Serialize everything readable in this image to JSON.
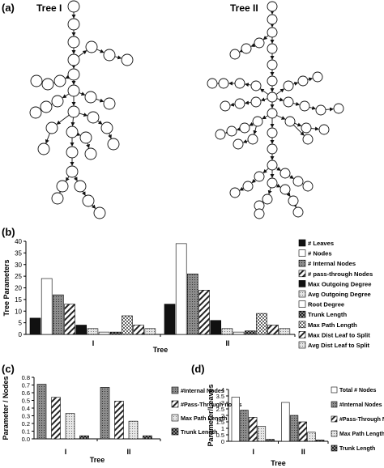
{
  "panels": {
    "a": {
      "label": "(a)",
      "trees": [
        {
          "title": "Tree I"
        },
        {
          "title": "Tree II"
        }
      ]
    },
    "b": {
      "label": "(b)"
    },
    "c": {
      "label": "(c)"
    },
    "d": {
      "label": "(d)"
    }
  },
  "colors": {
    "black": "#111111",
    "white": "#ffffff",
    "gray": "#9a9a9a",
    "light": "#d9d9d9"
  },
  "chart_data": [
    {
      "id": "b",
      "type": "bar",
      "xlabel": "Tree",
      "ylabel": "Tree Parameters",
      "ylim": [
        0,
        40
      ],
      "yticks": [
        0,
        5,
        10,
        15,
        20,
        25,
        30,
        35,
        40
      ],
      "categories": [
        "I",
        "II"
      ],
      "series": [
        {
          "name": "# Leaves",
          "fill": "black",
          "values": [
            7,
            13
          ]
        },
        {
          "name": "# Nodes",
          "fill": "white",
          "values": [
            24,
            39
          ]
        },
        {
          "name": "# Internal Nodes",
          "fill": "dots",
          "values": [
            17,
            26
          ]
        },
        {
          "name": "# pass-through Nodes",
          "fill": "diag",
          "values": [
            13,
            19
          ]
        },
        {
          "name": "Max Outgoing  Degree",
          "fill": "black",
          "values": [
            4,
            6
          ]
        },
        {
          "name": "Avg Outgoing  Degree",
          "fill": "lightdots",
          "values": [
            2.5,
            2.5
          ]
        },
        {
          "name": "Root Degree",
          "fill": "white",
          "values": [
            1,
            1
          ]
        },
        {
          "name": "Trunk Length",
          "fill": "darkcheck",
          "values": [
            1,
            1.5
          ]
        },
        {
          "name": "Max Path Length",
          "fill": "check",
          "values": [
            8,
            9
          ]
        },
        {
          "name": "Max Dist Leaf to Split",
          "fill": "diag",
          "values": [
            4,
            4
          ]
        },
        {
          "name": "Avg Dist Leaf to Split",
          "fill": "lightdots",
          "values": [
            2.5,
            2.5
          ]
        }
      ]
    },
    {
      "id": "c",
      "type": "bar",
      "xlabel": "Tree",
      "ylabel": "Parameter / Nodes",
      "ylim": [
        0,
        0.8
      ],
      "yticks": [
        0,
        0.1,
        0.2,
        0.3,
        0.4,
        0.5,
        0.6,
        0.7,
        0.8
      ],
      "categories": [
        "I",
        "II"
      ],
      "series": [
        {
          "name": "#Internal Nodes",
          "fill": "dots",
          "values": [
            0.71,
            0.67
          ]
        },
        {
          "name": "#Pass-Through nodes",
          "fill": "diag",
          "values": [
            0.54,
            0.49
          ]
        },
        {
          "name": "Max Path Length",
          "fill": "lightdots",
          "values": [
            0.33,
            0.23
          ]
        },
        {
          "name": "Trunk Length",
          "fill": "darkcheck",
          "values": [
            0.04,
            0.04
          ]
        }
      ]
    },
    {
      "id": "d",
      "type": "bar",
      "xlabel": "Tree",
      "ylabel": "Parameter/Leaves",
      "ylim": [
        0,
        4
      ],
      "yticks": [
        0,
        0.5,
        1,
        1.5,
        2,
        2.5,
        3,
        3.5,
        4
      ],
      "categories": [
        "I",
        "II"
      ],
      "series": [
        {
          "name": "Total # Nodes",
          "fill": "white",
          "values": [
            3.4,
            3.0
          ]
        },
        {
          "name": "#Internal Nodes",
          "fill": "dots",
          "values": [
            2.4,
            2.0
          ]
        },
        {
          "name": "#Pass-Through Nodes",
          "fill": "diag",
          "values": [
            1.85,
            1.5
          ]
        },
        {
          "name": "Max Path Length",
          "fill": "lightdots",
          "values": [
            1.15,
            0.7
          ]
        },
        {
          "name": "Trunk Length",
          "fill": "darkcheck",
          "values": [
            0.15,
            0.1
          ]
        }
      ]
    }
  ]
}
